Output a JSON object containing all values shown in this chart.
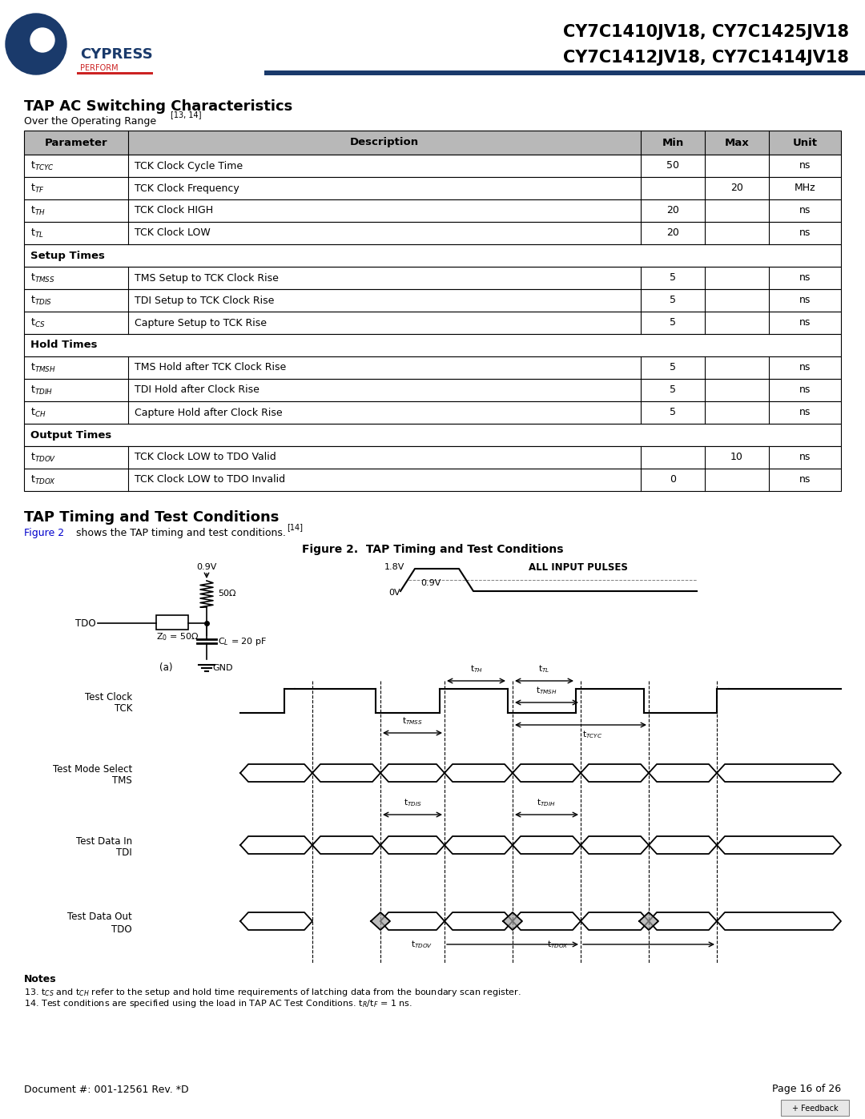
{
  "header_title": "CY7C1410JV18, CY7C1425JV18\nCY7C1412JV18, CY7C1414JV18",
  "section1_title": "TAP AC Switching Characteristics",
  "section1_subtitle": "Over the Operating Range ",
  "section1_superscript": "[13, 14]",
  "table_headers": [
    "Parameter",
    "Description",
    "Min",
    "Max",
    "Unit"
  ],
  "table_rows": [
    [
      "t$_{TCYC}$",
      "TCK Clock Cycle Time",
      "50",
      "",
      "ns"
    ],
    [
      "t$_{TF}$",
      "TCK Clock Frequency",
      "",
      "20",
      "MHz"
    ],
    [
      "t$_{TH}$",
      "TCK Clock HIGH",
      "20",
      "",
      "ns"
    ],
    [
      "t$_{TL}$",
      "TCK Clock LOW",
      "20",
      "",
      "ns"
    ],
    [
      "SETUP",
      "Setup Times",
      "",
      "",
      ""
    ],
    [
      "t$_{TMSS}$",
      "TMS Setup to TCK Clock Rise",
      "5",
      "",
      "ns"
    ],
    [
      "t$_{TDIS}$",
      "TDI Setup to TCK Clock Rise",
      "5",
      "",
      "ns"
    ],
    [
      "t$_{CS}$",
      "Capture Setup to TCK Rise",
      "5",
      "",
      "ns"
    ],
    [
      "HOLD",
      "Hold Times",
      "",
      "",
      ""
    ],
    [
      "t$_{TMSH}$",
      "TMS Hold after TCK Clock Rise",
      "5",
      "",
      "ns"
    ],
    [
      "t$_{TDIH}$",
      "TDI Hold after Clock Rise",
      "5",
      "",
      "ns"
    ],
    [
      "t$_{CH}$",
      "Capture Hold after Clock Rise",
      "5",
      "",
      "ns"
    ],
    [
      "OUTPUT",
      "Output Times",
      "",
      "",
      ""
    ],
    [
      "t$_{TDOV}$",
      "TCK Clock LOW to TDO Valid",
      "",
      "10",
      "ns"
    ],
    [
      "t$_{TDOX}$",
      "TCK Clock LOW to TDO Invalid",
      "0",
      "",
      "ns"
    ]
  ],
  "section2_title": "TAP Timing and Test Conditions",
  "fig_caption": "Figure 2.  TAP Timing and Test Conditions",
  "notes_title": "Notes",
  "note13": "13. t$_{CS}$ and t$_{CH}$ refer to the setup and hold time requirements of latching data from the boundary scan register.",
  "note14": "14. Test conditions are specified using the load in TAP AC Test Conditions. t$_R$/t$_F$ = 1 ns.",
  "doc_number": "Document #: 001-12561 Rev. *D",
  "page": "Page 16 of 26",
  "header_bg": "#1a3a6b",
  "table_header_bg": "#b0b0b0",
  "table_row_bg": "#ffffff",
  "table_alt_bg": "#ffffff",
  "border_color": "#000000",
  "section_header_bg": "#d0d0d0"
}
